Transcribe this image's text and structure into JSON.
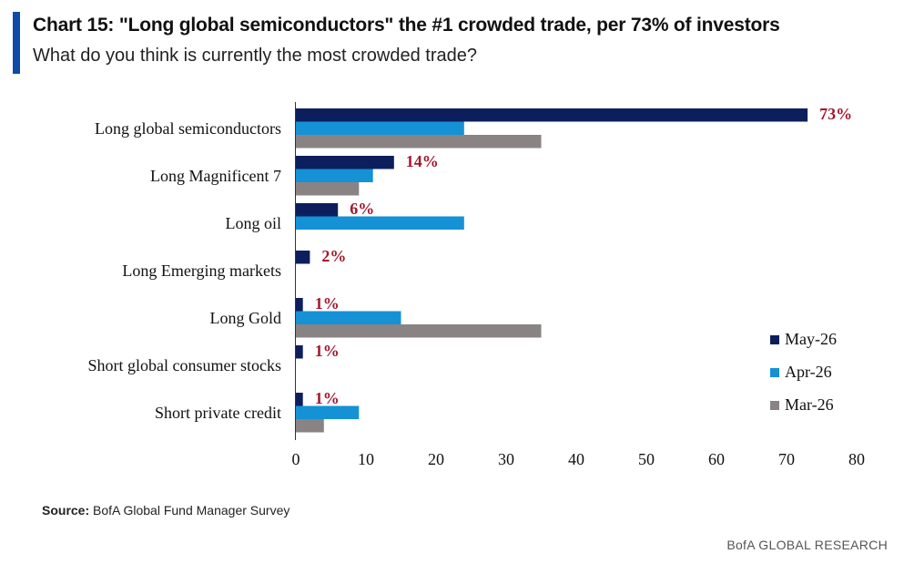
{
  "header": {
    "title": "Chart 15: \"Long global semiconductors\" the #1 crowded trade, per 73% of investors",
    "subtitle": "What do you think is currently the most crowded trade?"
  },
  "footer": {
    "source_label": "Source:",
    "source_text": "BofA Global Fund Manager Survey",
    "brand": "BofA GLOBAL RESEARCH"
  },
  "colors": {
    "May-26": "#0c1f5c",
    "Apr-26": "#1591d6",
    "Mar-26": "#8a8384",
    "label": "#a3172e",
    "accent": "#0f4aa8"
  },
  "chart_data": {
    "type": "bar",
    "orientation": "horizontal",
    "categories": [
      "Long global semiconductors",
      "Long Magnificent 7",
      "Long oil",
      "Long Emerging markets",
      "Long Gold",
      "Short global consumer stocks",
      "Short private credit"
    ],
    "series": [
      {
        "name": "May-26",
        "values": [
          73,
          14,
          6,
          2,
          1,
          1,
          1
        ]
      },
      {
        "name": "Apr-26",
        "values": [
          24,
          11,
          24,
          0,
          15,
          0,
          9
        ]
      },
      {
        "name": "Mar-26",
        "values": [
          35,
          9,
          0,
          0,
          35,
          0,
          4
        ]
      }
    ],
    "data_labels": [
      "73%",
      "14%",
      "6%",
      "2%",
      "1%",
      "1%",
      "1%"
    ],
    "xlim": [
      0,
      80
    ],
    "xticks": [
      0,
      10,
      20,
      30,
      40,
      50,
      60,
      70,
      80
    ],
    "legend_position": "right",
    "grid": false
  }
}
